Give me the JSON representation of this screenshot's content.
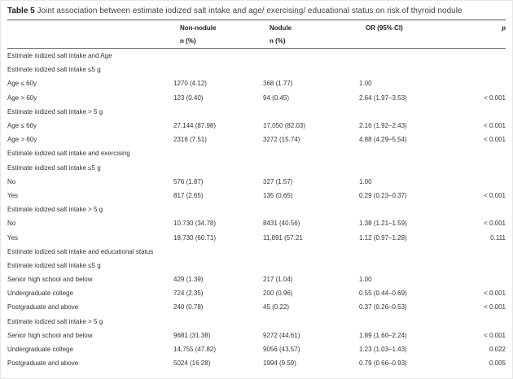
{
  "caption": {
    "label": "Table 5",
    "text": "Joint association between estimate iodized salt intake and age/ exercising/ educational status on risk of thyroid nodule"
  },
  "header": {
    "non_nodule": "Non-nodule",
    "non_nodule_sub": "n (%)",
    "nodule": "Nodule",
    "nodule_sub": "n (%)",
    "or": "OR (95% CI)",
    "p": "p"
  },
  "rows": [
    {
      "level": 0,
      "label": "Estimate iodized salt intake and Age",
      "nn": "",
      "nod": "",
      "or": "",
      "p": ""
    },
    {
      "level": 1,
      "label": "Estimate iodized salt intake ≤5 g",
      "nn": "",
      "nod": "",
      "or": "",
      "p": ""
    },
    {
      "level": 2,
      "label": "Age ≤ 60y",
      "nn": "1270 (4.12)",
      "nod": "368 (1.77)",
      "or": "1.00",
      "p": ""
    },
    {
      "level": 2,
      "label": "Age > 60y",
      "nn": "123 (0.40)",
      "nod": "94 (0.45)",
      "or": "2.64 (1.97–3.53)",
      "p": "< 0.001"
    },
    {
      "level": 1,
      "label": "Estimate iodized salt intake > 5 g",
      "nn": "",
      "nod": "",
      "or": "",
      "p": ""
    },
    {
      "level": 2,
      "label": "Age ≤ 60y",
      "nn": "27,144 (87.98)",
      "nod": "17,050 (82.03)",
      "or": "2.16 (1.92–2.43)",
      "p": "< 0.001"
    },
    {
      "level": 2,
      "label": "Age > 60y",
      "nn": "2316 (7.51)",
      "nod": "3272 (15.74)",
      "or": "4.88 (4.29–5.54)",
      "p": "< 0.001"
    },
    {
      "level": 0,
      "label": "Estimate iodized salt intake and exercising",
      "nn": "",
      "nod": "",
      "or": "",
      "p": ""
    },
    {
      "level": 1,
      "label": "Estimate iodized salt intake ≤5 g",
      "nn": "",
      "nod": "",
      "or": "",
      "p": ""
    },
    {
      "level": 2,
      "label": "No",
      "nn": "576 (1.87)",
      "nod": "327 (1.57)",
      "or": "1.00",
      "p": ""
    },
    {
      "level": 2,
      "label": "Yes",
      "nn": "817 (2.65)",
      "nod": "135 (0.65)",
      "or": "0.29 (0.23–0.37)",
      "p": "< 0.001"
    },
    {
      "level": 1,
      "label": "Estimate iodized salt intake > 5 g",
      "nn": "",
      "nod": "",
      "or": "",
      "p": ""
    },
    {
      "level": 2,
      "label": "No",
      "nn": "10,730 (34.78)",
      "nod": "8431 (40.56)",
      "or": "1.38 (1.21–1.59)",
      "p": "< 0.001"
    },
    {
      "level": 2,
      "label": "Yes",
      "nn": "18,730 (60.71)",
      "nod": "11,891 (57.21",
      "or": "1.12 (0.97–1.28)",
      "p": "0.111"
    },
    {
      "level": 0,
      "label": "Estimate iodized salt intake and educational status",
      "nn": "",
      "nod": "",
      "or": "",
      "p": ""
    },
    {
      "level": 1,
      "label": "Estimate iodized salt intake ≤5 g",
      "nn": "",
      "nod": "",
      "or": "",
      "p": ""
    },
    {
      "level": 2,
      "label": "Senior high school and below",
      "nn": "429 (1.39)",
      "nod": "217 (1.04)",
      "or": "1.00",
      "p": ""
    },
    {
      "level": 2,
      "label": "Undergraduate college",
      "nn": "724 (2.35)",
      "nod": "200 (0.96)",
      "or": "0.55 (0.44–0.69)",
      "p": "< 0.001"
    },
    {
      "level": 2,
      "label": "Postgraduate and above",
      "nn": "240 (0.78)",
      "nod": "45 (0.22)",
      "or": "0.37 (0.26–0.53)",
      "p": "< 0.001"
    },
    {
      "level": 1,
      "label": "Estimate iodized salt intake > 5 g",
      "nn": "",
      "nod": "",
      "or": "",
      "p": ""
    },
    {
      "level": 2,
      "label": "Senior high school and below",
      "nn": "9681 (31.38)",
      "nod": "9272 (44.61)",
      "or": "1.89 (1.60–2.24)",
      "p": "< 0.001"
    },
    {
      "level": 2,
      "label": "Undergraduate college",
      "nn": "14,755 (47.82)",
      "nod": "9056 (43.57)",
      "or": "1.23 (1.03–1.43)",
      "p": "0.022"
    },
    {
      "level": 2,
      "label": "Postgraduate and above",
      "nn": "5024 (16.28)",
      "nod": "1994 (9.59)",
      "or": "0.79 (0.66–0.93)",
      "p": "0.005"
    }
  ]
}
